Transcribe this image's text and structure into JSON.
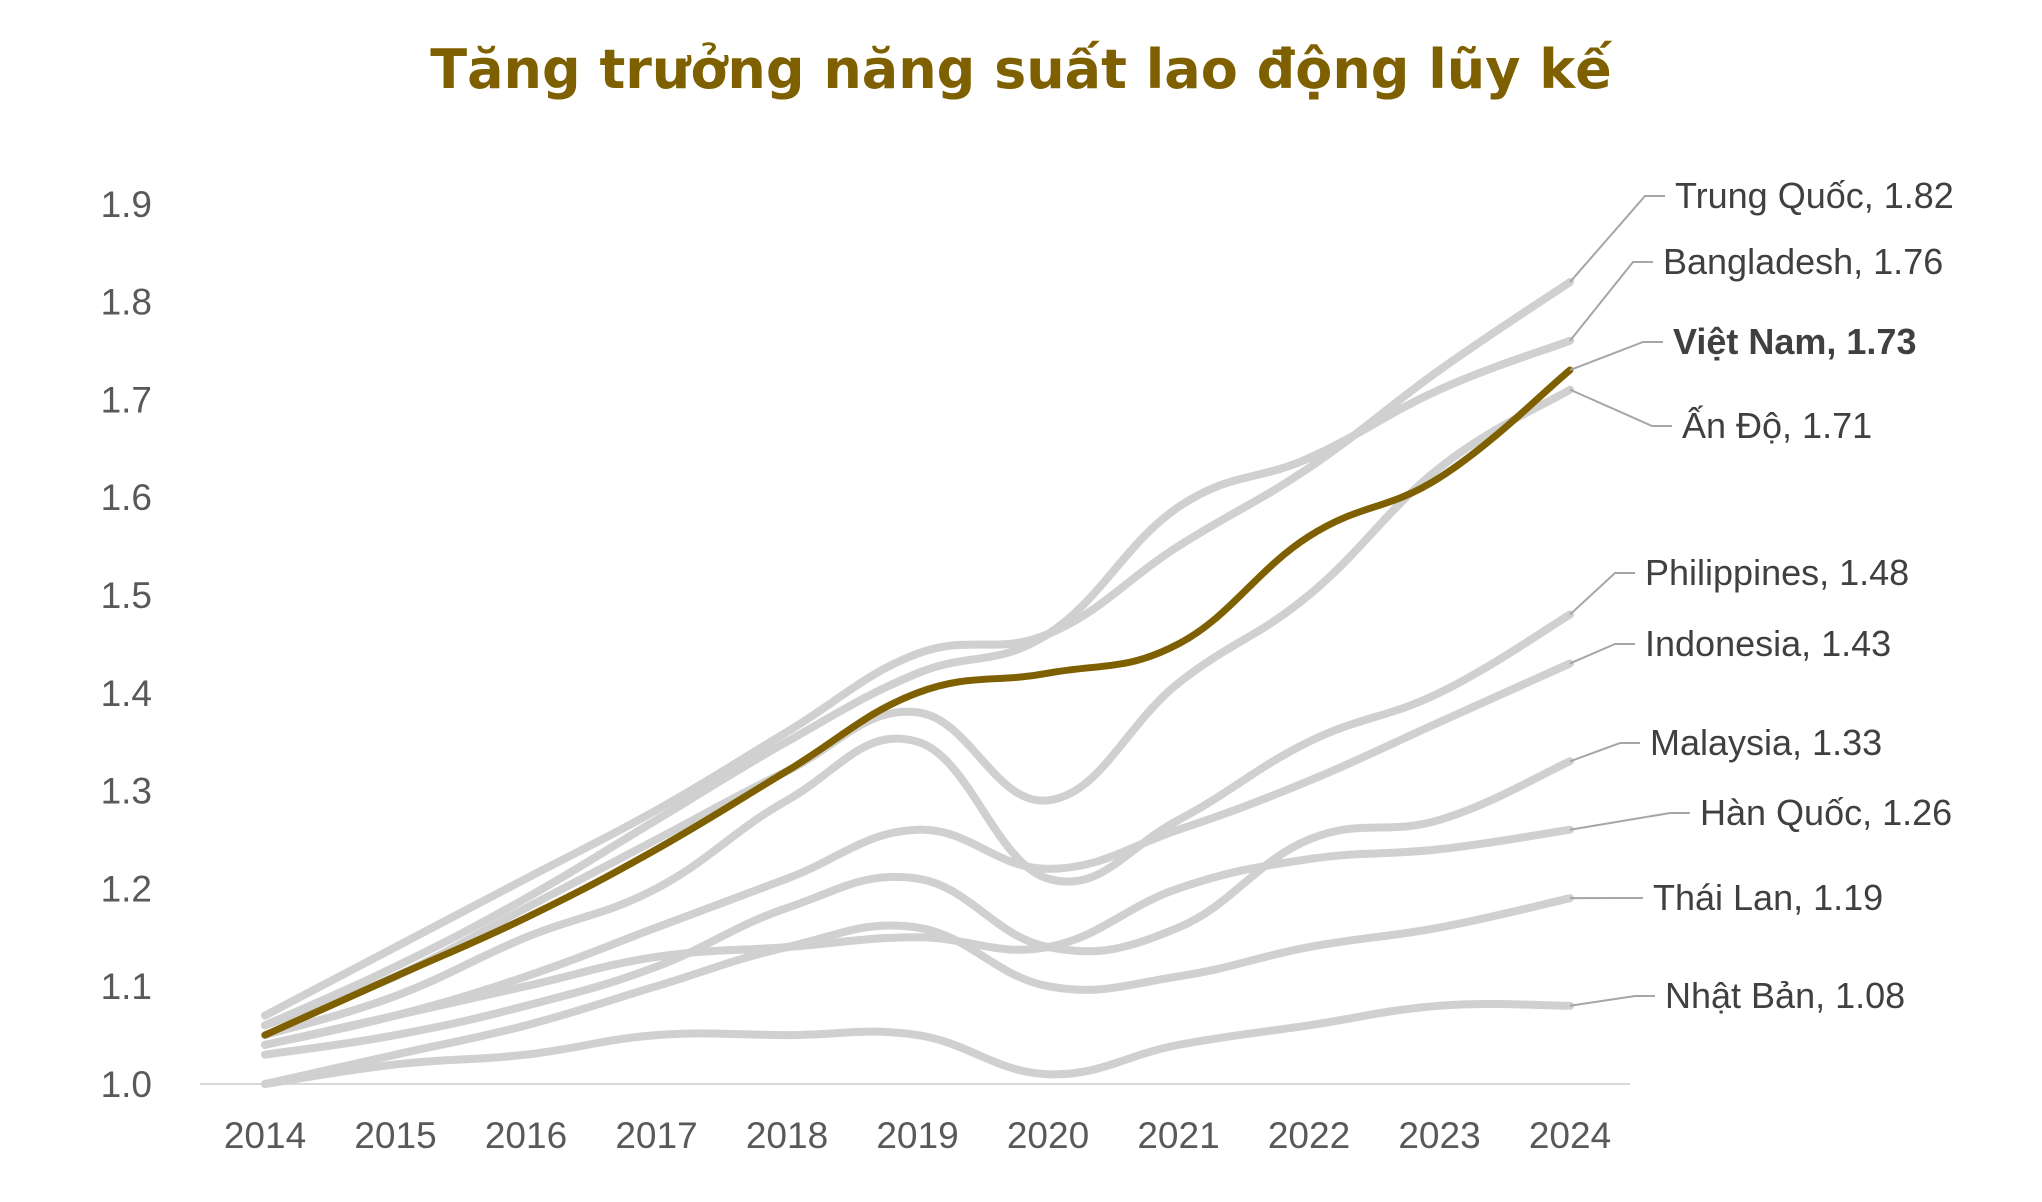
{
  "chart_data": {
    "type": "line",
    "title": "Tăng trưởng năng suất lao động lũy kế",
    "x": [
      "2014",
      "2015",
      "2016",
      "2017",
      "2018",
      "2019",
      "2020",
      "2021",
      "2022",
      "2023",
      "2024"
    ],
    "ylim": [
      1.0,
      1.9
    ],
    "yticks": [
      "1.0",
      "1.1",
      "1.2",
      "1.3",
      "1.4",
      "1.5",
      "1.6",
      "1.7",
      "1.8",
      "1.9"
    ],
    "grid": false,
    "legend": "labels at line ends, right side",
    "series": [
      {
        "name": "Trung Quốc",
        "end_label": "Trung Quốc,  1.82",
        "highlight": false,
        "values": [
          1.07,
          1.14,
          1.21,
          1.28,
          1.36,
          1.44,
          1.46,
          1.55,
          1.63,
          1.73,
          1.82
        ]
      },
      {
        "name": "Bangladesh",
        "end_label": "Bangladesh,  1.76",
        "highlight": false,
        "values": [
          1.06,
          1.12,
          1.19,
          1.27,
          1.35,
          1.42,
          1.46,
          1.59,
          1.64,
          1.71,
          1.76
        ]
      },
      {
        "name": "Ấn Độ",
        "end_label": "Ấn Độ,  1.71",
        "highlight": false,
        "values": [
          1.06,
          1.11,
          1.18,
          1.25,
          1.32,
          1.38,
          1.29,
          1.41,
          1.5,
          1.63,
          1.71
        ]
      },
      {
        "name": "Philippines",
        "end_label": "Philippines,  1.48",
        "highlight": false,
        "values": [
          1.05,
          1.09,
          1.15,
          1.2,
          1.29,
          1.35,
          1.21,
          1.27,
          1.35,
          1.4,
          1.48
        ]
      },
      {
        "name": "Indonesia",
        "end_label": "Indonesia,  1.43",
        "highlight": false,
        "values": [
          1.04,
          1.07,
          1.11,
          1.16,
          1.21,
          1.26,
          1.22,
          1.26,
          1.31,
          1.37,
          1.43
        ]
      },
      {
        "name": "Malaysia",
        "end_label": "Malaysia,  1.33",
        "highlight": false,
        "values": [
          1.03,
          1.05,
          1.08,
          1.12,
          1.18,
          1.21,
          1.14,
          1.16,
          1.25,
          1.27,
          1.33
        ]
      },
      {
        "name": "Hàn Quốc",
        "end_label": "Hàn Quốc,  1.26",
        "highlight": false,
        "values": [
          1.04,
          1.07,
          1.1,
          1.13,
          1.14,
          1.15,
          1.14,
          1.2,
          1.23,
          1.24,
          1.26
        ]
      },
      {
        "name": "Thái Lan",
        "end_label": "Thái Lan,  1.19",
        "highlight": false,
        "values": [
          1.0,
          1.03,
          1.06,
          1.1,
          1.14,
          1.16,
          1.1,
          1.11,
          1.14,
          1.16,
          1.19
        ]
      },
      {
        "name": "Nhật Bản",
        "end_label": "Nhật Bản,  1.08",
        "highlight": false,
        "values": [
          1.0,
          1.02,
          1.03,
          1.05,
          1.05,
          1.05,
          1.01,
          1.04,
          1.06,
          1.08,
          1.08
        ]
      },
      {
        "name": "Việt Nam",
        "end_label": "Việt Nam,  1.73",
        "highlight": true,
        "values": [
          1.05,
          1.11,
          1.17,
          1.24,
          1.32,
          1.4,
          1.42,
          1.45,
          1.56,
          1.62,
          1.73
        ]
      }
    ]
  },
  "colors": {
    "title": "#7F6000",
    "highlight_line": "#7F6000",
    "highlight_label": "#7F6000",
    "other_lines": "#D0D0D0",
    "leader_lines": "#A6A6A6",
    "axis": "#D9D9D9",
    "tick_text": "#595959"
  }
}
